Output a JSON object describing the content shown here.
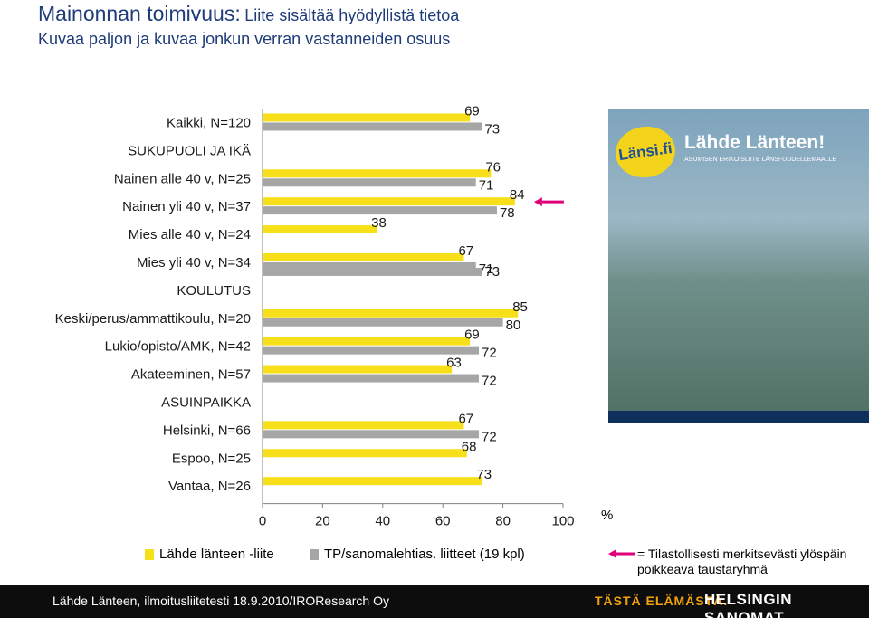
{
  "header": {
    "title_main": "Mainonnan toimivuus:",
    "title_rest": "Liite sisältää hyödyllistä tietoa",
    "subtitle": "Kuvaa paljon ja kuvaa jonkun verran vastanneiden osuus"
  },
  "chart_data": {
    "type": "bar",
    "orientation": "horizontal",
    "categories": [
      "Kaikki, N=120",
      "SUKUPUOLI JA IKÄ",
      "Nainen alle 40 v, N=25",
      "Nainen yli 40 v, N=37",
      "Mies alle 40 v, N=24",
      "Mies yli 40 v, N=34",
      "KOULUTUS",
      "Keski/perus/ammattikoulu, N=20",
      "Lukio/opisto/AMK, N=42",
      "Akateeminen, N=57",
      "ASUINPAIKKA",
      "Helsinki, N=66",
      "Espoo, N=25",
      "Vantaa, N=26"
    ],
    "series": [
      {
        "name": "Lähde länteen -liite",
        "color": "#f7e01a",
        "values": [
          69,
          null,
          76,
          84,
          38,
          67,
          null,
          85,
          69,
          63,
          null,
          67,
          68,
          73
        ]
      },
      {
        "name": "TP/sanomalehtias. liitteet (19 kpl)",
        "color": "#a6a6a6",
        "values": [
          73,
          null,
          71,
          78,
          null,
          71,
          null,
          80,
          72,
          72,
          null,
          72,
          null,
          null
        ]
      }
    ],
    "secondary_third_values": [
      null,
      null,
      null,
      null,
      null,
      73,
      null,
      null,
      null,
      null,
      null,
      null,
      null,
      null
    ],
    "xticks": [
      "0",
      "20",
      "40",
      "60",
      "80",
      "100"
    ],
    "xlim": [
      0,
      100
    ],
    "x_unit": "%",
    "significant_rows": [
      "Nainen yli 40 v, N=37"
    ]
  },
  "legend": {
    "series1": "Lähde länteen -liite",
    "series2": "TP/sanomalehtias. liitteet (19 kpl)",
    "significance": "= Tilastollisesti merkitsevästi ylöspäin poikkeava taustaryhmä"
  },
  "cover": {
    "brand": "Länsi.fi",
    "headline": "Lähde Länteen!",
    "subheadline": "ASUMISEN ERIKOISLIITE LÄNSI-UUDELLEMAALLE"
  },
  "footer": {
    "source": "Lähde Länteen, ilmoitusliitetesti 18.9.2010/IROResearch Oy",
    "slogan": "TÄSTÄ ELÄMÄSTÄ.",
    "brand": "HELSINGIN SANOMAT"
  },
  "colors": {
    "accent": "#1f3c7a",
    "series1": "#f7e01a",
    "series2": "#a6a6a6",
    "arrow": "#e0007a"
  }
}
